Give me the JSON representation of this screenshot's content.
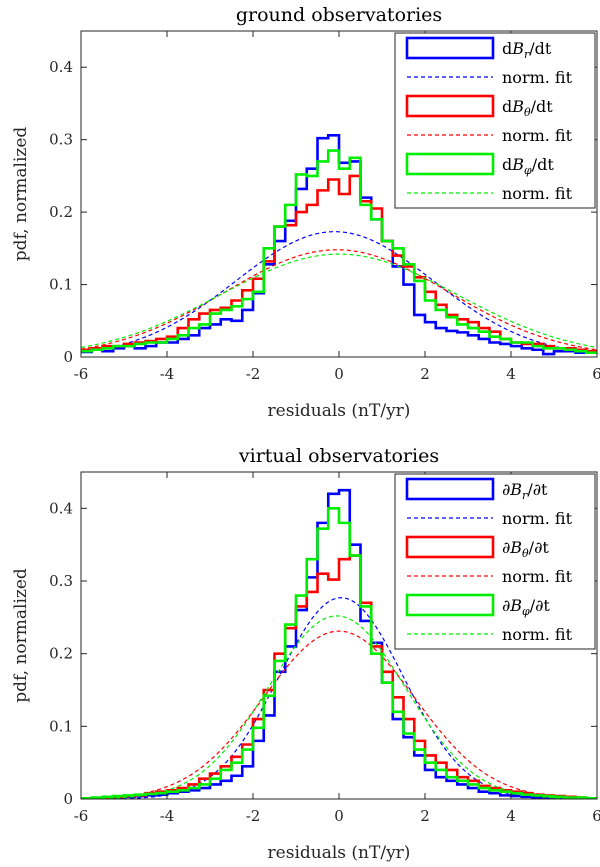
{
  "chart_data": [
    {
      "type": "line",
      "title": "ground observatories",
      "xlabel": "residuals (nT/yr)",
      "ylabel": "pdf, normalized",
      "xlim": [
        -6,
        6
      ],
      "ylim": [
        0,
        0.45
      ],
      "xticks": [
        -6,
        -4,
        -2,
        0,
        2,
        4,
        6
      ],
      "xtick_labels": [
        "-6",
        "-4",
        "-2",
        "0",
        "2",
        "4",
        "6"
      ],
      "yticks": [
        0,
        0.1,
        0.2,
        0.3,
        0.4
      ],
      "ytick_labels": [
        "0",
        "0.1",
        "0.2",
        "0.3",
        "0.4"
      ],
      "grid": false,
      "legend_position": "top-right",
      "bin_edges": [
        -6.0,
        -5.75,
        -5.5,
        -5.25,
        -5.0,
        -4.75,
        -4.5,
        -4.25,
        -4.0,
        -3.75,
        -3.5,
        -3.25,
        -3.0,
        -2.75,
        -2.5,
        -2.25,
        -2.0,
        -1.75,
        -1.5,
        -1.25,
        -1.0,
        -0.75,
        -0.5,
        -0.25,
        0.0,
        0.25,
        0.5,
        0.75,
        1.0,
        1.25,
        1.5,
        1.75,
        2.0,
        2.25,
        2.5,
        2.75,
        3.0,
        3.25,
        3.5,
        3.75,
        4.0,
        4.25,
        4.5,
        4.75,
        5.0,
        5.25,
        5.5,
        5.75,
        6.0
      ],
      "series": [
        {
          "name": "dB_r/dt",
          "legend_parts": [
            "d",
            "B",
            "r",
            "/dt"
          ],
          "style": "histogram",
          "color": "#0000ff",
          "values": [
            0.007,
            0.01,
            0.008,
            0.012,
            0.015,
            0.012,
            0.015,
            0.02,
            0.02,
            0.025,
            0.03,
            0.04,
            0.045,
            0.052,
            0.05,
            0.065,
            0.088,
            0.128,
            0.16,
            0.188,
            0.232,
            0.26,
            0.302,
            0.306,
            0.268,
            0.27,
            0.22,
            0.19,
            0.16,
            0.125,
            0.1,
            0.058,
            0.048,
            0.04,
            0.036,
            0.034,
            0.03,
            0.025,
            0.02,
            0.018,
            0.015,
            0.012,
            0.01,
            0.004,
            0.008,
            0.008,
            0.006,
            0.006
          ]
        },
        {
          "name": "norm. fit",
          "style": "dashed",
          "color": "#0000ff",
          "mu": -0.1,
          "sigma": 2.3,
          "peak": 0.173
        },
        {
          "name": "dB_θ/dt",
          "legend_parts": [
            "d",
            "B",
            "θ",
            "/dt"
          ],
          "style": "histogram",
          "color": "#ff0000",
          "values": [
            0.01,
            0.012,
            0.015,
            0.015,
            0.018,
            0.02,
            0.022,
            0.025,
            0.028,
            0.04,
            0.052,
            0.06,
            0.065,
            0.068,
            0.078,
            0.092,
            0.108,
            0.132,
            0.18,
            0.182,
            0.2,
            0.21,
            0.23,
            0.245,
            0.225,
            0.25,
            0.215,
            0.205,
            0.16,
            0.14,
            0.125,
            0.11,
            0.09,
            0.072,
            0.058,
            0.052,
            0.048,
            0.04,
            0.035,
            0.025,
            0.02,
            0.018,
            0.018,
            0.015,
            0.012,
            0.012,
            0.01,
            0.008
          ]
        },
        {
          "name": "norm. fit",
          "style": "dashed",
          "color": "#ff0000",
          "mu": -0.05,
          "sigma": 2.6,
          "peak": 0.148
        },
        {
          "name": "dB_φ/dt",
          "legend_parts": [
            "d",
            "B",
            "φ",
            "/dt"
          ],
          "style": "histogram",
          "color": "#00ee00",
          "values": [
            0.008,
            0.01,
            0.012,
            0.015,
            0.015,
            0.018,
            0.02,
            0.02,
            0.025,
            0.03,
            0.04,
            0.045,
            0.06,
            0.065,
            0.07,
            0.08,
            0.09,
            0.15,
            0.18,
            0.21,
            0.252,
            0.25,
            0.27,
            0.285,
            0.26,
            0.275,
            0.21,
            0.19,
            0.16,
            0.15,
            0.128,
            0.105,
            0.078,
            0.065,
            0.055,
            0.045,
            0.04,
            0.035,
            0.028,
            0.025,
            0.02,
            0.02,
            0.015,
            0.012,
            0.012,
            0.01,
            0.008,
            0.006
          ]
        },
        {
          "name": "norm. fit",
          "style": "dashed",
          "color": "#00ee00",
          "mu": 0.0,
          "sigma": 2.75,
          "peak": 0.142
        }
      ]
    },
    {
      "type": "line",
      "title": "virtual observatories",
      "xlabel": "residuals (nT/yr)",
      "ylabel": "pdf, normalized",
      "xlim": [
        -6,
        6
      ],
      "ylim": [
        0,
        0.45
      ],
      "xticks": [
        -6,
        -4,
        -2,
        0,
        2,
        4,
        6
      ],
      "xtick_labels": [
        "-6",
        "-4",
        "-2",
        "0",
        "2",
        "4",
        "6"
      ],
      "yticks": [
        0,
        0.1,
        0.2,
        0.3,
        0.4
      ],
      "ytick_labels": [
        "0",
        "0.1",
        "0.2",
        "0.3",
        "0.4"
      ],
      "grid": false,
      "legend_position": "top-right",
      "bin_edges": [
        -6.0,
        -5.75,
        -5.5,
        -5.25,
        -5.0,
        -4.75,
        -4.5,
        -4.25,
        -4.0,
        -3.75,
        -3.5,
        -3.25,
        -3.0,
        -2.75,
        -2.5,
        -2.25,
        -2.0,
        -1.75,
        -1.5,
        -1.25,
        -1.0,
        -0.75,
        -0.5,
        -0.25,
        0.0,
        0.25,
        0.5,
        0.75,
        1.0,
        1.25,
        1.5,
        1.75,
        2.0,
        2.25,
        2.5,
        2.75,
        3.0,
        3.25,
        3.5,
        3.75,
        4.0,
        4.25,
        4.5,
        4.75,
        5.0,
        5.25,
        5.5,
        5.75,
        6.0
      ],
      "series": [
        {
          "name": "∂B_r/∂t",
          "legend_parts": [
            "∂",
            "B",
            "r",
            "/∂t"
          ],
          "style": "histogram",
          "color": "#0000ff",
          "values": [
            0.0,
            0.0,
            0.002,
            0.002,
            0.003,
            0.004,
            0.005,
            0.006,
            0.008,
            0.01,
            0.012,
            0.015,
            0.02,
            0.025,
            0.032,
            0.045,
            0.08,
            0.115,
            0.175,
            0.21,
            0.26,
            0.305,
            0.38,
            0.42,
            0.425,
            0.35,
            0.245,
            0.215,
            0.16,
            0.11,
            0.085,
            0.06,
            0.04,
            0.03,
            0.025,
            0.02,
            0.015,
            0.01,
            0.008,
            0.005,
            0.004,
            0.003,
            0.002,
            0.002,
            0.001,
            0.001,
            0.001,
            0.0
          ]
        },
        {
          "name": "norm. fit",
          "style": "dashed",
          "color": "#0000ff",
          "mu": 0.05,
          "sigma": 1.45,
          "peak": 0.277
        },
        {
          "name": "∂B_θ/∂t",
          "legend_parts": [
            "∂",
            "B",
            "θ",
            "/∂t"
          ],
          "style": "histogram",
          "color": "#ff0000",
          "values": [
            0.001,
            0.001,
            0.002,
            0.003,
            0.004,
            0.005,
            0.008,
            0.01,
            0.012,
            0.015,
            0.02,
            0.028,
            0.035,
            0.045,
            0.058,
            0.075,
            0.11,
            0.15,
            0.2,
            0.235,
            0.265,
            0.285,
            0.31,
            0.302,
            0.33,
            0.335,
            0.27,
            0.21,
            0.175,
            0.14,
            0.11,
            0.08,
            0.06,
            0.05,
            0.04,
            0.03,
            0.025,
            0.018,
            0.015,
            0.012,
            0.01,
            0.008,
            0.006,
            0.005,
            0.004,
            0.003,
            0.002,
            0.001
          ]
        },
        {
          "name": "norm. fit",
          "style": "dashed",
          "color": "#ff0000",
          "mu": 0.0,
          "sigma": 1.75,
          "peak": 0.231
        },
        {
          "name": "∂B_φ/∂t",
          "legend_parts": [
            "∂",
            "B",
            "φ",
            "/∂t"
          ],
          "style": "histogram",
          "color": "#00ee00",
          "values": [
            0.001,
            0.002,
            0.003,
            0.004,
            0.005,
            0.006,
            0.007,
            0.008,
            0.01,
            0.012,
            0.015,
            0.02,
            0.028,
            0.04,
            0.05,
            0.068,
            0.098,
            0.142,
            0.19,
            0.24,
            0.28,
            0.33,
            0.372,
            0.4,
            0.38,
            0.335,
            0.265,
            0.2,
            0.16,
            0.12,
            0.09,
            0.068,
            0.05,
            0.04,
            0.03,
            0.025,
            0.02,
            0.015,
            0.012,
            0.01,
            0.008,
            0.006,
            0.005,
            0.004,
            0.003,
            0.002,
            0.002,
            0.001
          ]
        },
        {
          "name": "norm. fit",
          "style": "dashed",
          "color": "#00ee00",
          "mu": -0.05,
          "sigma": 1.6,
          "peak": 0.252
        }
      ]
    }
  ]
}
